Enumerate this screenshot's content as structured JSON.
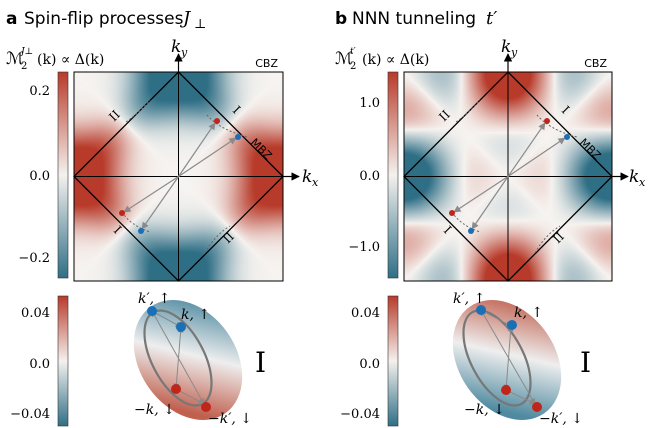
{
  "panels": [
    {
      "letter": "a",
      "title": "Spin-flip processes",
      "title_symbol": "J",
      "title_symbol_sub": "⊥",
      "cbar_label_main": "ℳ",
      "cbar_label_sub": "2",
      "cbar_label_sup": "J⊥",
      "cbar_label_rest": "(k) ∝ Δ(k)",
      "cbar_ticks": [
        "0.2",
        "0.0",
        "−0.2"
      ],
      "cbar_tick_values": [
        0.2,
        0.0,
        -0.2
      ],
      "cbar_range": [
        -0.27,
        0.27
      ],
      "small_cbar_ticks": [
        "0.04",
        "0.0",
        "−0.04"
      ],
      "small_cbar_tick_values": [
        0.04,
        0.0,
        -0.04
      ],
      "small_cbar_range": [
        -0.055,
        0.055
      ],
      "ky_label": "k",
      "ky_sub": "y",
      "kx_label": "k",
      "kx_sub": "x",
      "cbz_label": "CBZ",
      "mbz_label": "MBZ",
      "roman_I": "I",
      "roman_II": "II",
      "ellipse_roman": "I",
      "ellipse_labels": {
        "kprime_up": "k′, ↑",
        "k_up": "k, ↑",
        "minus_k_down": "−k, ↓",
        "minus_kprime_down": "−k′, ↓"
      }
    },
    {
      "letter": "b",
      "title": "NNN tunneling",
      "title_symbol": "t′",
      "title_symbol_sub": "",
      "cbar_label_main": "ℳ",
      "cbar_label_sub": "2",
      "cbar_label_sup": "t′",
      "cbar_label_rest": "(k) ∝ Δ(k)",
      "cbar_ticks": [
        "1.0",
        "0.0",
        "−1.0"
      ],
      "cbar_tick_values": [
        1.0,
        0.0,
        -1.0
      ],
      "cbar_range": [
        -1.35,
        1.35
      ],
      "small_cbar_ticks": [
        "0.04",
        "0.0",
        "−0.04"
      ],
      "small_cbar_tick_values": [
        0.04,
        0.0,
        -0.04
      ],
      "small_cbar_range": [
        -0.055,
        0.055
      ],
      "ky_label": "k",
      "ky_sub": "y",
      "kx_label": "k",
      "kx_sub": "x",
      "cbz_label": "CBZ",
      "mbz_label": "MBZ",
      "roman_I": "I",
      "roman_II": "II",
      "ellipse_roman": "I",
      "ellipse_labels": {
        "kprime_up": "k′, ↑",
        "k_up": "k, ↑",
        "minus_k_down": "−k, ↓",
        "minus_kprime_down": "−k′, ↓"
      }
    }
  ],
  "colors": {
    "red": "#b83a2a",
    "blue": "#2f6f86",
    "white": "#f6f3f0",
    "dot_red": "#c0251b",
    "dot_blue": "#1a6fb7",
    "arrow": "#8a8a8a",
    "ring": "#777777"
  }
}
